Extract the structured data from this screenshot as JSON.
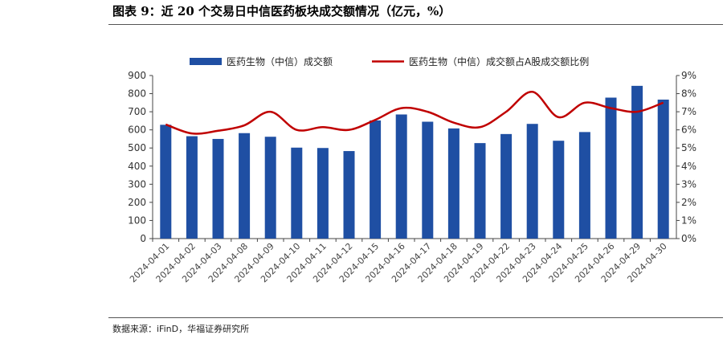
{
  "page": {
    "title": "图表 9：近 20 个交易日中信医药板块成交额情况（亿元，%）",
    "source": "数据来源：iFinD，华福证券研究所"
  },
  "chart_data": {
    "type": "bar",
    "categories": [
      "2024-04-01",
      "2024-04-02",
      "2024-04-03",
      "2024-04-08",
      "2024-04-09",
      "2024-04-10",
      "2024-04-11",
      "2024-04-12",
      "2024-04-15",
      "2024-04-16",
      "2024-04-17",
      "2024-04-18",
      "2024-04-19",
      "2024-04-22",
      "2024-04-23",
      "2024-04-24",
      "2024-04-25",
      "2024-04-26",
      "2024-04-29",
      "2024-04-30"
    ],
    "series": [
      {
        "name": "医药生物（中信）成交额",
        "type": "bar",
        "axis": "left",
        "color": "#1f4fa3",
        "values": [
          628,
          565,
          550,
          582,
          562,
          502,
          500,
          483,
          652,
          685,
          645,
          608,
          527,
          577,
          633,
          540,
          588,
          778,
          843,
          767
        ]
      },
      {
        "name": "医药生物（中信）成交额占A股成交额比例",
        "type": "line",
        "axis": "right",
        "color": "#c00000",
        "values": [
          6.3,
          5.8,
          5.95,
          6.25,
          7.0,
          6.0,
          6.15,
          6.0,
          6.55,
          7.2,
          7.0,
          6.4,
          6.15,
          7.0,
          8.1,
          6.7,
          7.5,
          7.2,
          7.0,
          7.5
        ]
      }
    ],
    "y_left": {
      "lim": [
        0,
        900
      ],
      "ticks": [
        0,
        100,
        200,
        300,
        400,
        500,
        600,
        700,
        800,
        900
      ]
    },
    "y_right": {
      "lim": [
        0,
        9
      ],
      "ticks": [
        "0%",
        "1%",
        "2%",
        "3%",
        "4%",
        "5%",
        "6%",
        "7%",
        "8%",
        "9%"
      ]
    },
    "legend": "top",
    "grid": false
  }
}
